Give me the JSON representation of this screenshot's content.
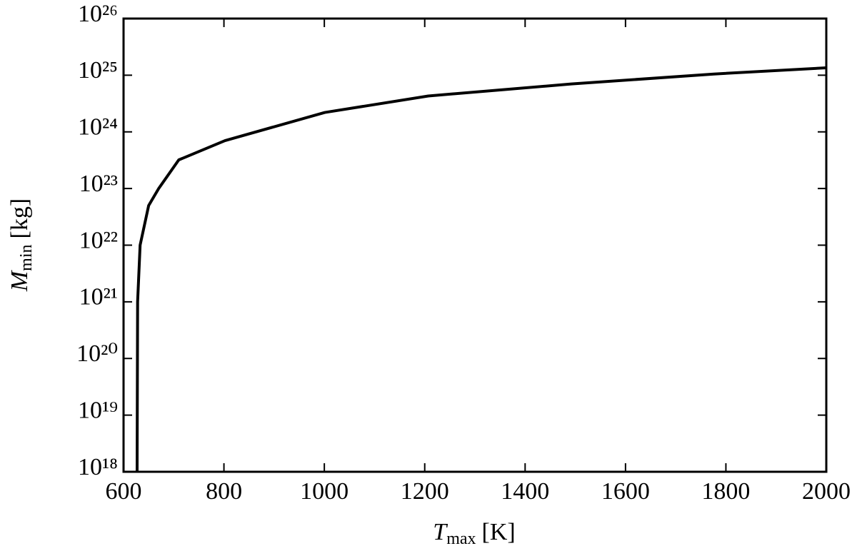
{
  "chart_data": {
    "type": "line",
    "x_label": {
      "symbol": "T",
      "subscript": "max",
      "unit": "[K]"
    },
    "y_label": {
      "symbol": "M",
      "subscript": "min",
      "unit": "[kg]"
    },
    "x": [
      627,
      628,
      633,
      650,
      670,
      710,
      802,
      1001,
      1207,
      1492,
      1776,
      2000
    ],
    "series": [
      {
        "color": "#000000",
        "values": [
          1e+18,
          1e+21,
          1e+22,
          5e+22,
          1e+23,
          3.2e+23,
          7e+23,
          2.2e+24,
          4.3e+24,
          7e+24,
          1.05e+25,
          1.35e+25
        ]
      }
    ],
    "xlim": [
      600,
      2000
    ],
    "xticks": [
      600,
      800,
      1000,
      1200,
      1400,
      1600,
      1800,
      2000
    ],
    "ylim": [
      1e+18,
      1e+26
    ],
    "log_y": true,
    "yticks": [
      {
        "value": 1e+18,
        "label": "10¹⁸"
      },
      {
        "value": 1e+19,
        "label": "10¹⁹"
      },
      {
        "value": 1e+20,
        "label": "10²⁰"
      },
      {
        "value": 1e+21,
        "label": "10²¹"
      },
      {
        "value": 1e+22,
        "label": "10²²"
      },
      {
        "value": 1e+23,
        "label": "10²³"
      },
      {
        "value": 1e+24,
        "label": "10²⁴"
      },
      {
        "value": 1e+25,
        "label": "10²⁵"
      },
      {
        "value": 1e+26,
        "label": "10²⁶"
      }
    ],
    "grid": false
  }
}
